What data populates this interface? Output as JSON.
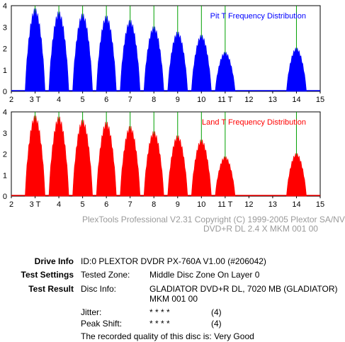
{
  "chart_data": [
    {
      "type": "area",
      "title": "Pit T Frequency Distribution",
      "color": "#0000ff",
      "x_ticks": [
        "2",
        "3 T",
        "4",
        "5",
        "6",
        "7",
        "8",
        "9",
        "10",
        "11 T",
        "12",
        "13",
        "14",
        "15"
      ],
      "y_ticks": [
        "0",
        "1",
        "2",
        "3",
        "4"
      ],
      "xlim": [
        2,
        15
      ],
      "ylim": [
        0,
        4
      ],
      "peaks": [
        {
          "t": 3,
          "value": 3.9
        },
        {
          "t": 4,
          "value": 3.75
        },
        {
          "t": 5,
          "value": 3.65
        },
        {
          "t": 6,
          "value": 3.55
        },
        {
          "t": 7,
          "value": 3.35
        },
        {
          "t": 8,
          "value": 3.05
        },
        {
          "t": 9,
          "value": 2.8
        },
        {
          "t": 10,
          "value": 2.65
        },
        {
          "t": 11,
          "value": 1.85
        },
        {
          "t": 14,
          "value": 2.05
        }
      ]
    },
    {
      "type": "area",
      "title": "Land T Frequency Distribution",
      "color": "#ff0000",
      "x_ticks": [
        "2",
        "3 T",
        "4",
        "5",
        "6",
        "7",
        "8",
        "9",
        "10",
        "11 T",
        "12",
        "13",
        "14",
        "15"
      ],
      "y_ticks": [
        "0",
        "1",
        "2",
        "3",
        "4"
      ],
      "xlim": [
        2,
        15
      ],
      "ylim": [
        0,
        4
      ],
      "peaks": [
        {
          "t": 3,
          "value": 3.85
        },
        {
          "t": 4,
          "value": 3.8
        },
        {
          "t": 5,
          "value": 3.65
        },
        {
          "t": 6,
          "value": 3.55
        },
        {
          "t": 7,
          "value": 3.35
        },
        {
          "t": 8,
          "value": 3.1
        },
        {
          "t": 9,
          "value": 2.9
        },
        {
          "t": 10,
          "value": 2.7
        },
        {
          "t": 11,
          "value": 1.9
        },
        {
          "t": 14,
          "value": 2.05
        }
      ]
    }
  ],
  "copyright": "PlexTools Professional V2.31 Copyright (C) 1999-2005 Plextor SA/NV",
  "disc_line": "DVD+R DL   2.4 X    MKM 001 00",
  "info": {
    "drive_label": "Drive Info",
    "drive_value": "ID:0 PLEXTOR DVDR PX-760A V1.00 (#206042)",
    "settings_label": "Test Settings",
    "zone_label": "Tested Zone:",
    "zone_value": "Middle Disc Zone On Layer 0",
    "result_label": "Test Result",
    "disc_info_label": "Disc Info:",
    "disc_info_line1": "GLADIATOR DVD+R DL, 7020 MB (GLADIATOR)",
    "disc_info_line2": "MKM 001 00",
    "jitter_label": "Jitter:",
    "jitter_stars": "* * * *",
    "jitter_score": "(4)",
    "peak_label": "Peak Shift:",
    "peak_stars": "* * * *",
    "peak_score": "(4)",
    "quality": "The recorded quality of this disc is: Very Good"
  }
}
